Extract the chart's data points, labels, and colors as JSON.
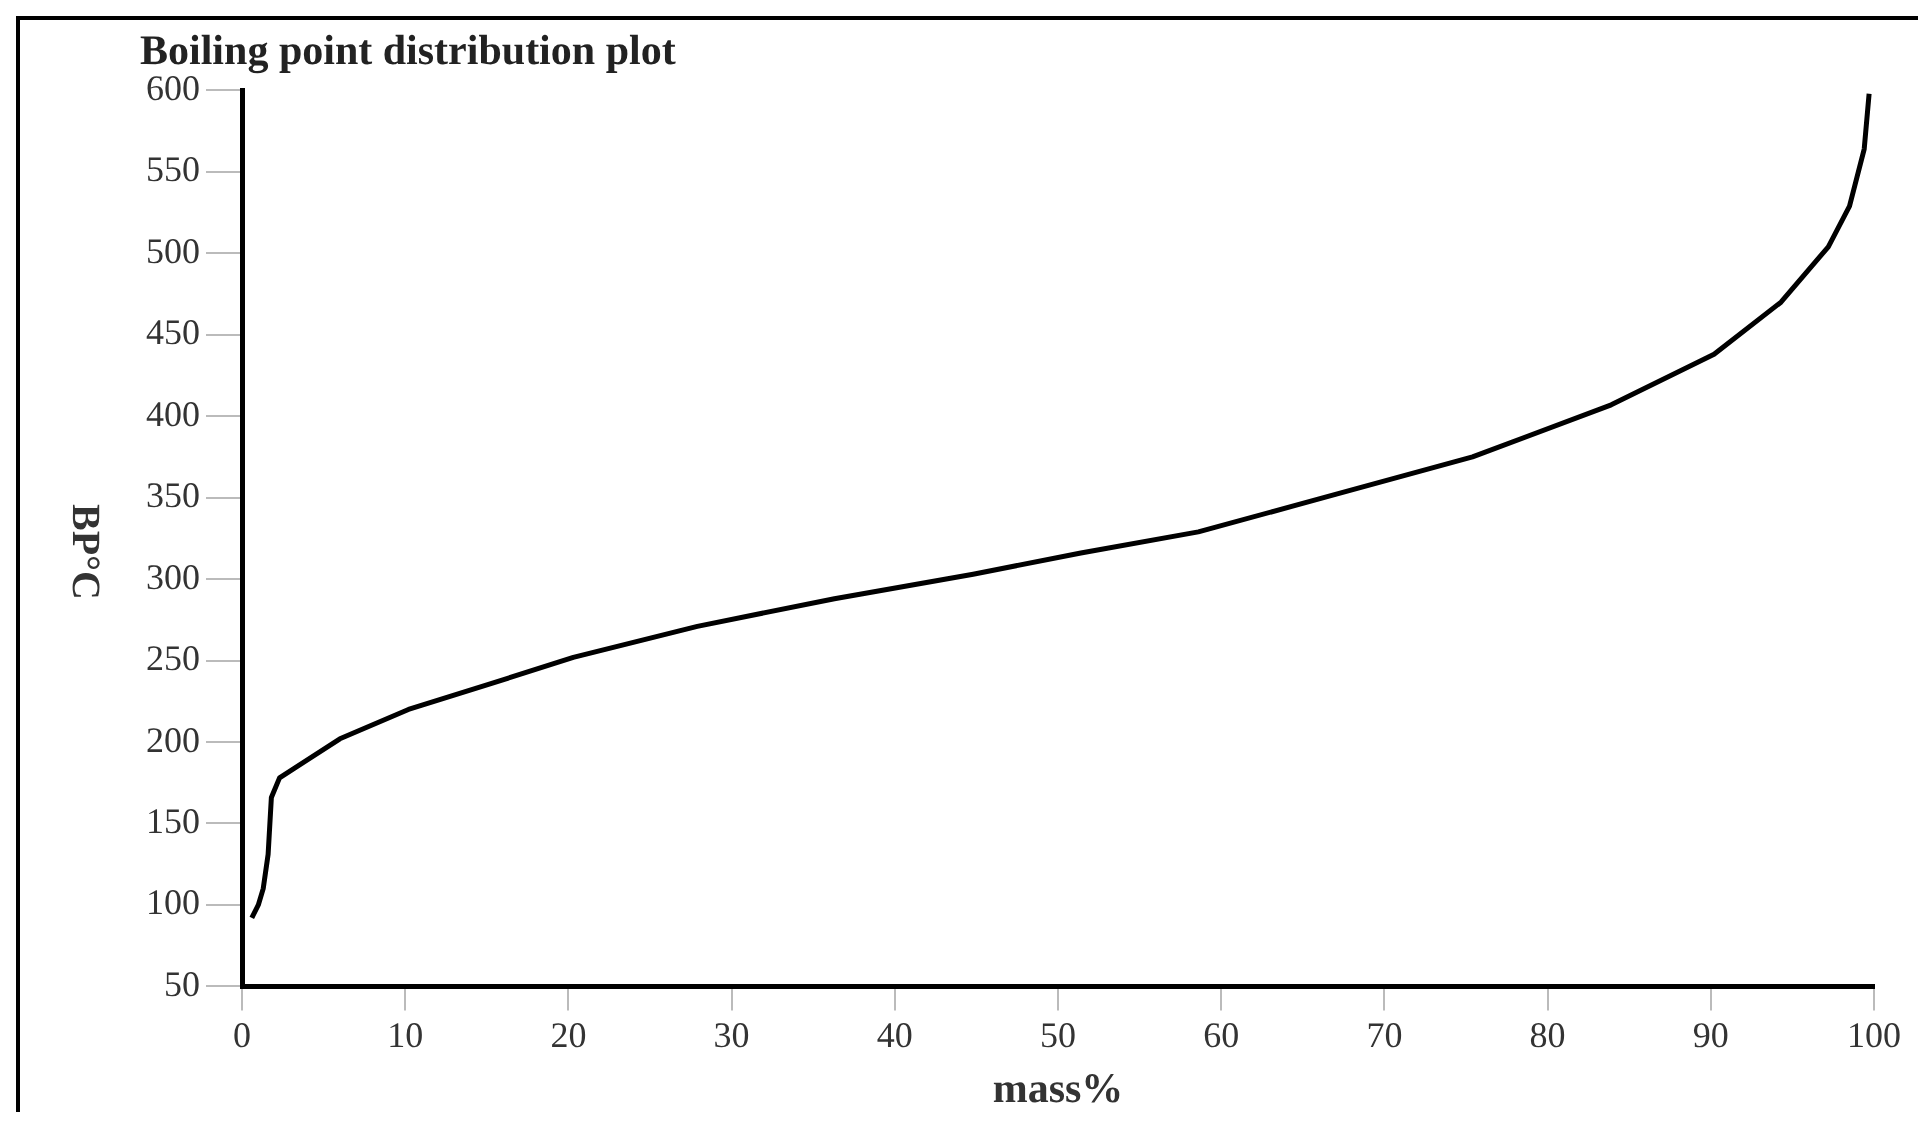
{
  "chart_data": {
    "type": "line",
    "title": "Boiling point distribution plot",
    "xlabel": "mass%",
    "ylabel": "BP°C",
    "x": [
      0.6,
      1.0,
      1.3,
      1.6,
      1.8,
      2.3,
      6.0,
      10.2,
      15.3,
      20.3,
      27.9,
      36.3,
      44.8,
      51.4,
      58.6,
      67.0,
      75.4,
      83.9,
      90.2,
      94.3,
      97.2,
      98.5,
      99.4,
      99.7
    ],
    "series": [
      {
        "color": "#000000",
        "values": [
          92,
          100,
          110,
          131,
          166,
          178,
          202,
          220,
          236,
          252,
          271,
          288,
          303,
          316,
          329,
          352,
          375,
          407,
          438,
          470,
          504,
          529,
          564,
          598
        ]
      }
    ],
    "xlim": [
      0,
      100
    ],
    "xticks": [
      0,
      10,
      20,
      30,
      40,
      50,
      60,
      70,
      80,
      90,
      100
    ],
    "ylim": [
      50,
      600
    ],
    "yticks": [
      50,
      100,
      150,
      200,
      250,
      300,
      350,
      400,
      450,
      500,
      550,
      600
    ],
    "grid": false,
    "legend": false,
    "marker": "none",
    "line_style": "solid"
  }
}
